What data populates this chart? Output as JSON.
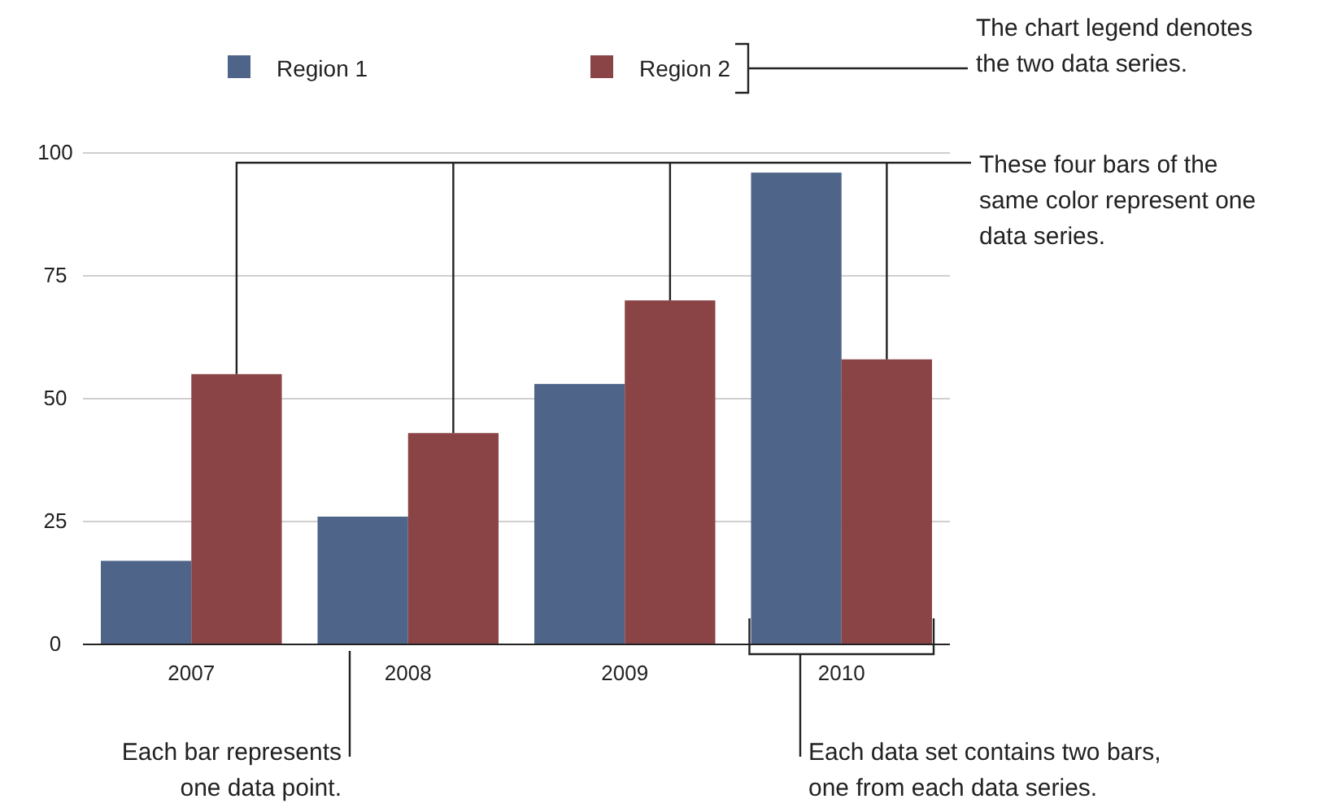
{
  "chart_data": {
    "type": "bar",
    "categories": [
      "2007",
      "2008",
      "2009",
      "2010"
    ],
    "series": [
      {
        "name": "Region 1",
        "color": "#4e6488",
        "values": [
          17,
          26,
          53,
          96
        ]
      },
      {
        "name": "Region 2",
        "color": "#8a4446",
        "values": [
          55,
          43,
          70,
          58
        ]
      }
    ],
    "ylim": [
      0,
      100
    ],
    "yticks": [
      0,
      25,
      50,
      75,
      100
    ],
    "grid": "y",
    "legend": "top",
    "annotations": [
      "The chart legend denotes\nthe two data series.",
      "These four bars of the\nsame color represent one\ndata series.",
      "Each bar represents\none data point.",
      "Each data set contains two bars,\none from each data series."
    ]
  }
}
